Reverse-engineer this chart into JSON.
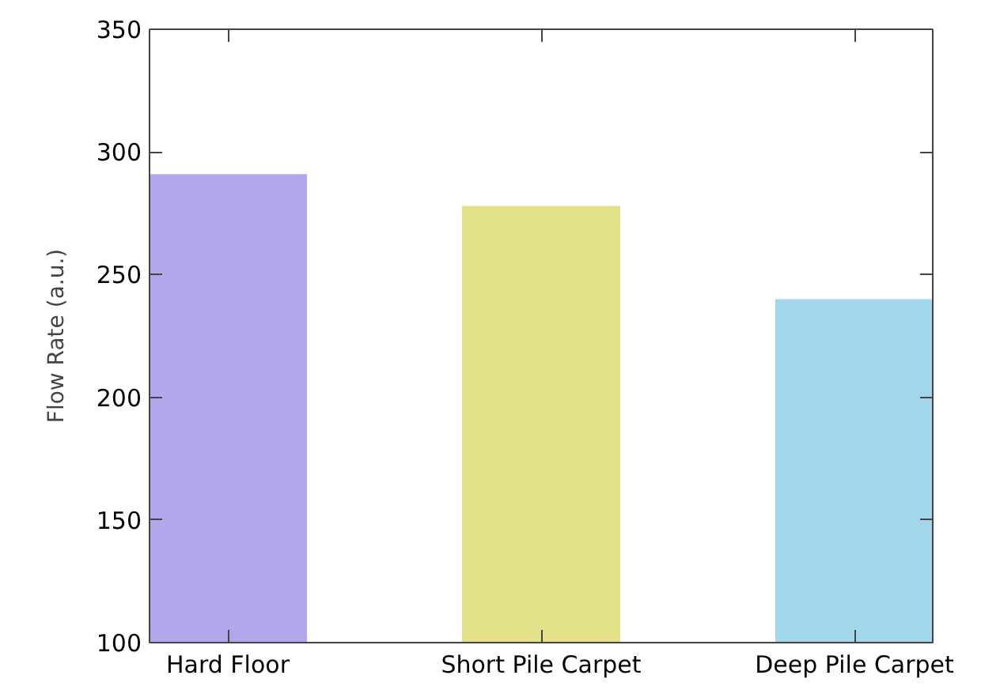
{
  "chart_data": {
    "type": "bar",
    "ylabel": "Flow Rate (a.u.)",
    "categories": [
      "Hard Floor",
      "Short Pile Carpet",
      "Deep Pile Carpet"
    ],
    "values": [
      291,
      278,
      240
    ],
    "colors": [
      "#b3a7eb",
      "#e4e18b",
      "#a1d7e8"
    ],
    "ylim": [
      100,
      350
    ],
    "yticks": [
      100,
      150,
      200,
      250,
      300,
      350
    ],
    "grid": false
  }
}
